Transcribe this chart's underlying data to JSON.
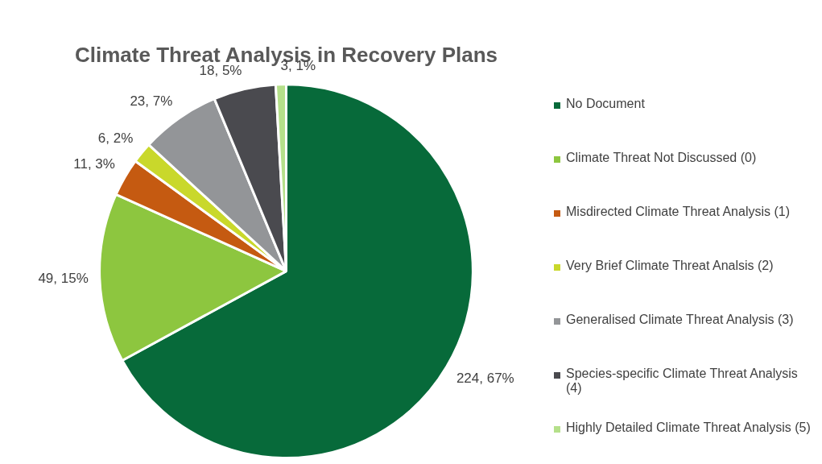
{
  "chart_data": {
    "type": "pie",
    "title": "Climate Threat Analysis in Recovery Plans",
    "categories": [
      "No Document",
      "Climate Threat Not Discussed (0)",
      "Misdirected Climate Threat Analysis (1)",
      "Very Brief Climate Threat Analsis (2)",
      "Generalised Climate Threat Analysis (3)",
      "Species-specific Climate Threat Analysis (4)",
      "Highly Detailed Climate Threat Analysis (5)"
    ],
    "values": [
      224,
      49,
      11,
      6,
      23,
      18,
      3
    ],
    "colors": [
      "#076a3a",
      "#8dc63f",
      "#c55a11",
      "#c9d82b",
      "#939598",
      "#4a4a4f",
      "#b5e08a"
    ],
    "value_labels": [
      "224, 67%",
      "49, 15%",
      "11, 3%",
      "6, 2%",
      "23, 7%",
      "18, 5%",
      "3, 1%"
    ],
    "legend": "right"
  }
}
